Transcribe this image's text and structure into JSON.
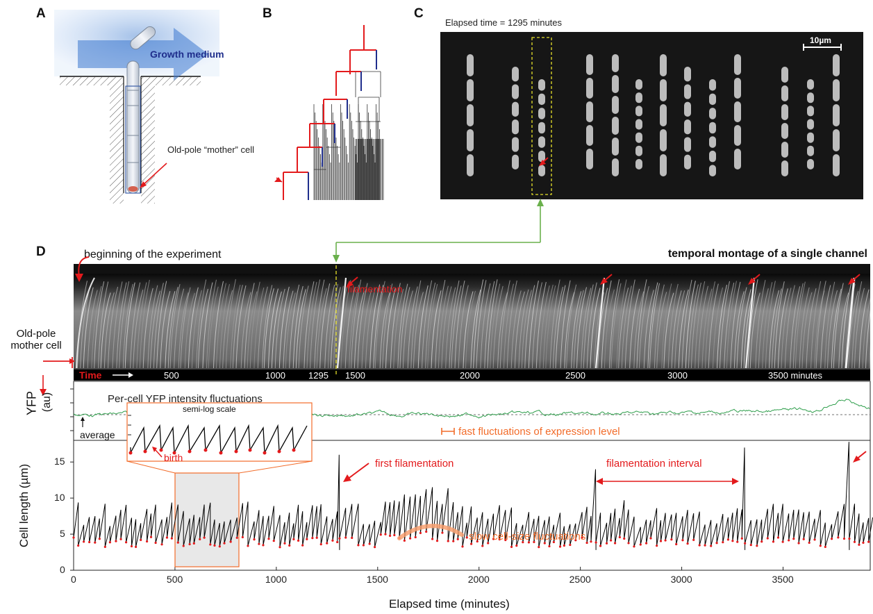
{
  "panels": {
    "a": "A",
    "b": "B",
    "c": "C",
    "d": "D"
  },
  "panel_a": {
    "medium_label": "Growth medium",
    "mother_label": "Old-pole “mother” cell"
  },
  "panel_c": {
    "elapsed_label": "Elapsed time = 1295 minutes",
    "scale_label": "10µm"
  },
  "panel_d": {
    "beginning_label": "beginning of the experiment",
    "montage_title": "temporal montage of a single channel",
    "filamentation_label": "filamentation",
    "mother_label_1": "Old-pole",
    "mother_label_2": "mother cell",
    "time_label": "Time",
    "time_ticks": [
      "500",
      "1000",
      "1295",
      "1500",
      "2000",
      "2500",
      "3000",
      "3500 minutes"
    ],
    "yfp_axis_1": "YFP",
    "yfp_axis_2": "(au)",
    "yfp_title": "Per-cell YFP intensity fluctuations",
    "average_label": "average",
    "fast_label": "fast fluctuations of expression level",
    "inset_title": "semi-log scale",
    "birth_label": "birth",
    "first_fil_label": "first filamentation",
    "interval_label": "filamentation interval",
    "slow_label": "slow cell-size fluctuations",
    "ylabel": "Cell length (µm)",
    "xlabel": "Elapsed time (minutes)"
  },
  "chart_data": [
    {
      "type": "line",
      "title": "Per-cell YFP intensity fluctuations",
      "xlabel": "",
      "ylabel": "YFP (au)",
      "xlim": [
        0,
        3930
      ],
      "annotations": [
        "average",
        "fast fluctuations of expression level"
      ]
    },
    {
      "type": "line",
      "title": "",
      "xlabel": "Elapsed time (minutes)",
      "ylabel": "Cell length (µm)",
      "xlim": [
        0,
        3930
      ],
      "ylim": [
        0,
        18
      ],
      "xticks": [
        0,
        500,
        1000,
        1500,
        2000,
        2500,
        3000,
        3500
      ],
      "yticks": [
        0,
        5,
        10,
        15
      ],
      "filamentation_events": [
        {
          "x": 1310,
          "peak": 16
        },
        {
          "x": 2575,
          "peak": 14
        },
        {
          "x": 3310,
          "peak": 17
        },
        {
          "x": 3825,
          "peak": 17.8
        }
      ],
      "baseline_range": [
        2.5,
        8.5
      ],
      "annotations": [
        "first filamentation",
        "filamentation interval",
        "slow cell-size fluctuations",
        "birth",
        "semi-log scale"
      ]
    }
  ],
  "colors": {
    "red": "#e31a1c",
    "blue": "#1f2e8c",
    "green": "#2e9e4b",
    "orange": "#f26c2a",
    "yellow": "#e6e02a",
    "arrow_green": "#6ab04c"
  }
}
